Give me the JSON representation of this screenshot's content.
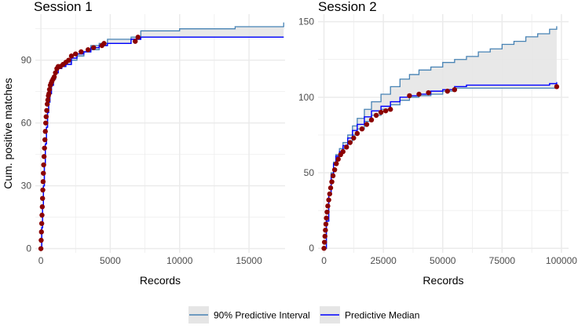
{
  "chart_data": [
    {
      "type": "line",
      "title": "Session 1",
      "xlabel": "Records",
      "ylabel": "Cum. positive matches",
      "xlim": [
        -400,
        17600
      ],
      "ylim": [
        -2,
        112
      ],
      "x_ticks": [
        0,
        5000,
        10000,
        15000
      ],
      "x_tick_labels": [
        "0",
        "5000",
        "10000",
        "15000"
      ],
      "y_ticks": [
        0,
        30,
        60,
        90
      ],
      "y_tick_labels": [
        "0",
        "30",
        "60",
        "90"
      ],
      "grid": true,
      "series": [
        {
          "name": "90% Predictive Interval upper",
          "x": [
            0,
            60,
            120,
            180,
            250,
            320,
            400,
            480,
            560,
            650,
            760,
            900,
            1050,
            1250,
            1500,
            1800,
            2200,
            2600,
            3100,
            3600,
            4200,
            4800,
            5600,
            6500,
            7200,
            8000,
            10000,
            12000,
            14000,
            16000,
            17500
          ],
          "y": [
            0,
            10,
            20,
            30,
            40,
            50,
            58,
            65,
            70,
            74,
            78,
            81,
            84,
            86,
            87,
            89,
            91,
            93,
            94,
            97,
            98,
            100,
            100,
            101,
            104,
            104,
            105,
            105,
            106,
            106,
            108
          ]
        },
        {
          "name": "90% Predictive Interval lower",
          "x": [
            0,
            60,
            120,
            180,
            250,
            320,
            400,
            480,
            560,
            650,
            760,
            900,
            1050,
            1250,
            1500,
            1800,
            2200,
            2600,
            3100,
            3600,
            4200,
            4800,
            5600,
            6500,
            7200,
            8000,
            10000,
            12000,
            14000,
            16000,
            17500
          ],
          "y": [
            0,
            10,
            20,
            30,
            40,
            50,
            58,
            65,
            70,
            74,
            78,
            81,
            84,
            86,
            87,
            88,
            90,
            92,
            94,
            95,
            97,
            98,
            98,
            100,
            101,
            101,
            101,
            101,
            101,
            101,
            101
          ]
        },
        {
          "name": "Predictive Median",
          "x": [
            0,
            60,
            120,
            180,
            250,
            320,
            400,
            480,
            560,
            650,
            760,
            900,
            1050,
            1250,
            1500,
            1800,
            2200,
            2600,
            3100,
            3600,
            4200,
            4800,
            5600,
            6500,
            7200,
            8000,
            10000,
            12000,
            14000,
            16000,
            17500
          ],
          "y": [
            0,
            10,
            20,
            30,
            40,
            50,
            58,
            65,
            70,
            74,
            78,
            81,
            84,
            86,
            87,
            88,
            91,
            93,
            94,
            96,
            97,
            98,
            98,
            100,
            101,
            101,
            101,
            101,
            101,
            101,
            101
          ]
        },
        {
          "name": "Observed",
          "x": [
            0,
            20,
            40,
            60,
            80,
            100,
            120,
            140,
            160,
            180,
            200,
            230,
            260,
            290,
            320,
            350,
            380,
            420,
            460,
            500,
            540,
            580,
            620,
            680,
            740,
            800,
            880,
            960,
            1050,
            1150,
            1250,
            1400,
            1600,
            1800,
            2000,
            2200,
            2500,
            2900,
            3400,
            3800,
            4400,
            4550,
            6800,
            7000
          ],
          "y": [
            0,
            4,
            8,
            12,
            16,
            20,
            24,
            28,
            32,
            36,
            40,
            44,
            48,
            52,
            56,
            60,
            63,
            66,
            69,
            71,
            73,
            74,
            76,
            78,
            79,
            80,
            81,
            82,
            84,
            86,
            87,
            87,
            88,
            89,
            90,
            92,
            93,
            94,
            95,
            96,
            97,
            98,
            99,
            101
          ]
        }
      ]
    },
    {
      "type": "line",
      "title": "Session 2",
      "xlabel": "Records",
      "ylabel": "",
      "xlim": [
        -2500,
        103000
      ],
      "ylim": [
        -3,
        155
      ],
      "x_ticks": [
        0,
        25000,
        50000,
        75000,
        100000
      ],
      "x_tick_labels": [
        "0",
        "25000",
        "50000",
        "75000",
        "100000"
      ],
      "y_ticks": [
        0,
        50,
        100,
        150
      ],
      "y_tick_labels": [
        "0",
        "50",
        "100",
        "150"
      ],
      "grid": true,
      "series": [
        {
          "name": "90% Predictive Interval upper",
          "x": [
            0,
            1000,
            2000,
            3000,
            4000,
            5000,
            6500,
            8000,
            10000,
            12000,
            14000,
            17000,
            20000,
            24000,
            28000,
            32000,
            36000,
            40000,
            45000,
            50000,
            55000,
            60000,
            65000,
            70000,
            75000,
            80000,
            85000,
            90000,
            95000,
            98000
          ],
          "y": [
            0,
            18,
            36,
            50,
            57,
            62,
            66,
            70,
            75,
            81,
            86,
            92,
            97,
            102,
            107,
            112,
            115,
            118,
            120,
            123,
            125,
            127,
            130,
            132,
            135,
            137,
            140,
            142,
            145,
            147
          ]
        },
        {
          "name": "90% Predictive Interval lower",
          "x": [
            0,
            1000,
            2000,
            3000,
            4000,
            5000,
            6500,
            8000,
            10000,
            12000,
            14000,
            17000,
            20000,
            24000,
            28000,
            32000,
            36000,
            40000,
            45000,
            50000,
            55000,
            60000,
            65000,
            70000,
            75000,
            80000,
            85000,
            90000,
            95000,
            98000
          ],
          "y": [
            0,
            18,
            36,
            48,
            55,
            60,
            63,
            66,
            71,
            75,
            79,
            84,
            88,
            92,
            95,
            98,
            100,
            101,
            102,
            104,
            106,
            106,
            106,
            106,
            106,
            106,
            106,
            106,
            106,
            106
          ]
        },
        {
          "name": "Predictive Median",
          "x": [
            0,
            1000,
            2000,
            3000,
            4000,
            5000,
            6500,
            8000,
            10000,
            12000,
            14000,
            17000,
            20000,
            24000,
            28000,
            32000,
            36000,
            40000,
            45000,
            50000,
            55000,
            60000,
            65000,
            70000,
            75000,
            80000,
            85000,
            90000,
            95000,
            98000
          ],
          "y": [
            0,
            18,
            36,
            49,
            56,
            61,
            64,
            68,
            73,
            78,
            82,
            87,
            91,
            94,
            97,
            100,
            101,
            102,
            104,
            105,
            107,
            108,
            108,
            108,
            108,
            108,
            108,
            108,
            109,
            110
          ]
        },
        {
          "name": "Observed",
          "x": [
            0,
            200,
            400,
            600,
            800,
            1000,
            1300,
            1600,
            2000,
            2400,
            2800,
            3300,
            3800,
            4500,
            5200,
            6000,
            7000,
            8000,
            9500,
            11000,
            12500,
            14000,
            16000,
            18000,
            20000,
            22000,
            24000,
            26000,
            28000,
            36000,
            40000,
            44000,
            52000,
            55000,
            98000
          ],
          "y": [
            0,
            4,
            8,
            12,
            16,
            20,
            24,
            28,
            32,
            36,
            40,
            44,
            48,
            52,
            56,
            59,
            62,
            64,
            67,
            70,
            73,
            76,
            79,
            82,
            85,
            88,
            90,
            91,
            92,
            101,
            102,
            103,
            104,
            105,
            107
          ]
        }
      ]
    }
  ],
  "legend": {
    "placement": "bottom",
    "items": [
      {
        "label": "90% Predictive Interval",
        "line_color": "#4682b4",
        "fill_color": "#e5e5e5"
      },
      {
        "label": "Predictive Median",
        "line_color": "#0000ff",
        "fill_color": "#e5e5e5"
      }
    ]
  },
  "colors": {
    "interval_line": "#4682b4",
    "interval_fill": "#e5e5e5",
    "median_line": "#0000ff",
    "observed_point": "#8b0000",
    "grid": "#ebebeb"
  }
}
